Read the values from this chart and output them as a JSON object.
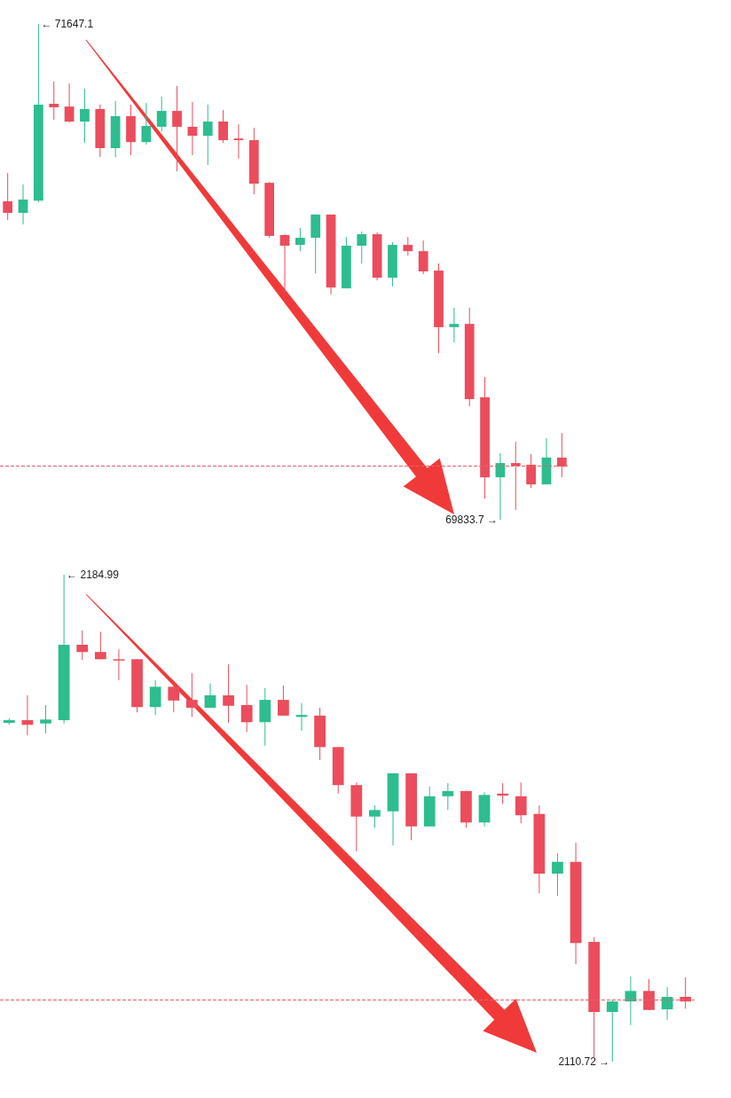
{
  "chart_data": [
    {
      "type": "candlestick",
      "categories": [
        null,
        null,
        null,
        null,
        null,
        null,
        null,
        null,
        null,
        null,
        null,
        null,
        null,
        null,
        null,
        null,
        null,
        null,
        null,
        null,
        null,
        null,
        null,
        null,
        null,
        null,
        null,
        null,
        null,
        null,
        null,
        null,
        null,
        null,
        null,
        null,
        null
      ],
      "ohlc": [
        [
          70998,
          71102,
          70930,
          70956
        ],
        [
          70956,
          71060,
          70914,
          71005
        ],
        [
          71001,
          71647.1,
          70995,
          71352
        ],
        [
          71355,
          71436,
          71297,
          71342
        ],
        [
          71345,
          71430,
          71287,
          71290
        ],
        [
          71290,
          71410,
          71212,
          71336
        ],
        [
          71336,
          71352,
          71160,
          71193
        ],
        [
          71193,
          71365,
          71160,
          71310
        ],
        [
          71310,
          71352,
          71167,
          71215
        ],
        [
          71215,
          71358,
          71206,
          71274
        ],
        [
          71271,
          71381,
          71254,
          71329
        ],
        [
          71329,
          71420,
          71108,
          71271
        ],
        [
          71271,
          71362,
          71167,
          71238
        ],
        [
          71238,
          71352,
          71131,
          71290
        ],
        [
          71290,
          71332,
          71212,
          71222
        ],
        [
          71228,
          71280,
          71154,
          71222
        ],
        [
          71222,
          71267,
          71024,
          71063
        ],
        [
          71066,
          71070,
          70865,
          70872
        ],
        [
          70875,
          70878,
          70664,
          70836
        ],
        [
          70839,
          70901,
          70816,
          70865
        ],
        [
          70865,
          70950,
          70735,
          70950
        ],
        [
          70950,
          70950,
          70658,
          70683
        ],
        [
          70680,
          70868,
          70680,
          70836
        ],
        [
          70836,
          70888,
          70771,
          70878
        ],
        [
          70878,
          70885,
          70709,
          70719
        ],
        [
          70719,
          70849,
          70687,
          70839
        ],
        [
          70839,
          70868,
          70800,
          70816
        ],
        [
          70816,
          70855,
          70732,
          70742
        ],
        [
          70745,
          70771,
          70443,
          70538
        ],
        [
          70538,
          70609,
          70482,
          70550
        ],
        [
          70550,
          70609,
          70249,
          70275
        ],
        [
          70281,
          70356,
          69911,
          69989
        ],
        [
          69989,
          70077,
          69833.7,
          70041
        ],
        [
          70041,
          70119,
          69869,
          70031
        ],
        [
          70035,
          70074,
          69950,
          69963
        ],
        [
          69963,
          70132,
          69963,
          70061
        ],
        [
          70061,
          70151,
          69989,
          70028
        ]
      ],
      "ref_lines": [
        {
          "axis": "y",
          "value": 70031,
          "color": "#e8606c",
          "line_style": "dashed"
        }
      ],
      "annotations": [
        "← 71647.1",
        "69833.7 →"
      ],
      "tick_labels": false
    },
    {
      "type": "candlestick",
      "categories": [
        null,
        null,
        null,
        null,
        null,
        null,
        null,
        null,
        null,
        null,
        null,
        null,
        null,
        null,
        null,
        null,
        null,
        null,
        null,
        null,
        null,
        null,
        null,
        null,
        null,
        null,
        null,
        null,
        null,
        null,
        null,
        null,
        null,
        null,
        null,
        null,
        null,
        null
      ],
      "ohlc": [
        [
          2162.4,
          2163.1,
          2162.1,
          2162.8
        ],
        [
          2162.8,
          2166.6,
          2160.5,
          2162.1
        ],
        [
          2162.3,
          2165.1,
          2160.8,
          2162.9
        ],
        [
          2162.8,
          2184.99,
          2162.3,
          2174.3
        ],
        [
          2174.3,
          2176.5,
          2172.0,
          2173.2
        ],
        [
          2173.2,
          2176.3,
          2172.1,
          2172.1
        ],
        [
          2172.1,
          2173.6,
          2168.9,
          2172.0
        ],
        [
          2172.1,
          2172.1,
          2164.0,
          2164.8
        ],
        [
          2164.8,
          2168.9,
          2163.6,
          2167.9
        ],
        [
          2167.9,
          2168.9,
          2164.0,
          2165.8
        ],
        [
          2165.9,
          2170.0,
          2163.3,
          2164.7
        ],
        [
          2164.7,
          2168.4,
          2164.7,
          2166.6
        ],
        [
          2166.6,
          2171.3,
          2162.4,
          2165.0
        ],
        [
          2165.1,
          2168.2,
          2161.0,
          2162.5
        ],
        [
          2162.5,
          2167.7,
          2158.9,
          2165.9
        ],
        [
          2165.9,
          2168.1,
          2163.5,
          2163.5
        ],
        [
          2163.3,
          2165.4,
          2161.2,
          2163.6
        ],
        [
          2163.5,
          2164.7,
          2156.7,
          2158.7
        ],
        [
          2158.7,
          2158.7,
          2151.6,
          2152.9
        ],
        [
          2152.9,
          2153.3,
          2142.8,
          2148.1
        ],
        [
          2148.1,
          2149.8,
          2146.4,
          2149.1
        ],
        [
          2148.9,
          2154.7,
          2143.7,
          2154.7
        ],
        [
          2154.7,
          2154.7,
          2144.5,
          2146.6
        ],
        [
          2146.6,
          2152.7,
          2146.6,
          2151.2
        ],
        [
          2151.2,
          2153.2,
          2149.1,
          2152.0
        ],
        [
          2152.0,
          2152.0,
          2146.4,
          2147.2
        ],
        [
          2147.2,
          2151.8,
          2146.6,
          2151.4
        ],
        [
          2151.6,
          2153.2,
          2150.0,
          2151.3
        ],
        [
          2151.2,
          2153.3,
          2147.1,
          2148.3
        ],
        [
          2148.5,
          2149.8,
          2136.4,
          2139.4
        ],
        [
          2139.4,
          2142.5,
          2136.0,
          2141.2
        ],
        [
          2141.2,
          2144.1,
          2125.6,
          2128.8
        ],
        [
          2129.0,
          2129.7,
          2111.3,
          2118.3
        ],
        [
          2118.3,
          2120.2,
          2110.72,
          2119.9
        ],
        [
          2119.9,
          2123.7,
          2116.3,
          2121.5
        ],
        [
          2121.5,
          2123.3,
          2118.6,
          2118.6
        ],
        [
          2118.7,
          2122.1,
          2117.1,
          2120.6
        ],
        [
          2120.6,
          2123.6,
          2118.8,
          2119.9
        ]
      ],
      "ref_lines": [
        {
          "axis": "y",
          "value": 2120.1,
          "color": "#e8606c",
          "line_style": "dashed"
        }
      ],
      "annotations": [
        "← 2184.99",
        "2110.72 →"
      ],
      "tick_labels": false
    }
  ]
}
